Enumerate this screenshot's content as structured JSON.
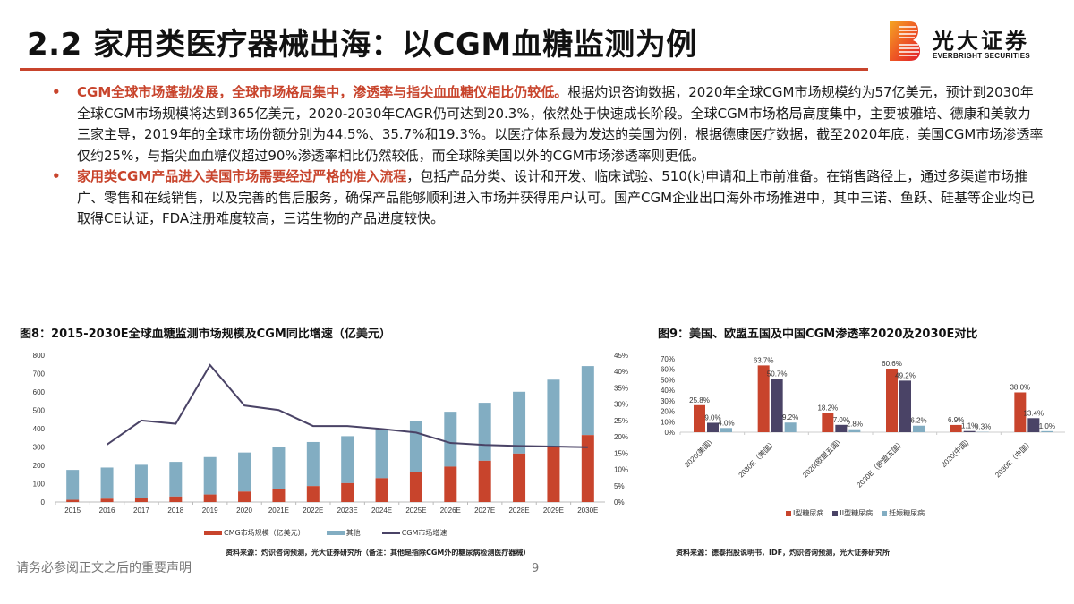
{
  "header": {
    "title": "2.2 家用类医疗器械出海：以CGM血糖监测为例",
    "logo_cn": "光大证券",
    "logo_en": "EVERBRIGHT SECURITIES",
    "accent_color": "#c8442c"
  },
  "bullets": [
    {
      "marker": "•",
      "highlight": "CGM全球市场蓬勃发展，全球市场格局集中，渗透率与指尖血血糖仪相比仍较低。",
      "body": "根据灼识咨询数据，2020年全球CGM市场规模约为57亿美元，预计到2030年全球CGM市场规模将达到365亿美元，2020-2030年CAGR仍可达到20.3%，依然处于快速成长阶段。全球CGM市场格局高度集中，主要被雅培、德康和美敦力三家主导，2019年的全球市场份额分别为44.5%、35.7%和19.3%。以医疗体系最为发达的美国为例，根据德康医疗数据，截至2020年底，美国CGM市场渗透率仅约25%，与指尖血血糖仪超过90%渗透率相比仍然较低，而全球除美国以外的CGM市场渗透率则更低。"
    },
    {
      "marker": "•",
      "highlight": "家用类CGM产品进入美国市场需要经过严格的准入流程",
      "body": "，包括产品分类、设计和开发、临床试验、510(k)申请和上市前准备。在销售路径上，通过多渠道市场推广、零售和在线销售，以及完善的售后服务，确保产品能够顺利进入市场并获得用户认可。国产CGM企业出口海外市场推进中，其中三诺、鱼跃、硅基等企业均已取得CE认证，FDA注册难度较高，三诺生物的产品进度较快。"
    }
  ],
  "figures": {
    "fig8": {
      "title": "图8：2015-2030E全球血糖监测市场规模及CGM同比增速（亿美元）",
      "legend": [
        "CMG市场规模（亿美元）",
        "其他",
        "CGM市场增速"
      ],
      "source": "资料来源：灼识咨询预测，光大证券研究所（备注：其他是指除CGM外的糖尿病检测医疗器械）"
    },
    "fig9": {
      "title": "图9：美国、欧盟五国及中国CGM渗透率2020及2030E对比",
      "legend": [
        "I型糖尿病",
        "II型糖尿病",
        "妊娠糖尿病"
      ],
      "source": "资料来源：德泰招股说明书，IDF，灼识咨询预测，光大证券研究所"
    }
  },
  "chart_data": [
    {
      "type": "bar",
      "stacked": true,
      "title": "图8：2015-2030E全球血糖监测市场规模及CGM同比增速（亿美元）",
      "categories": [
        "2015",
        "2016",
        "2017",
        "2018",
        "2019",
        "2020",
        "2021E",
        "2022E",
        "2023E",
        "2024E",
        "2025E",
        "2026E",
        "2027E",
        "2028E",
        "2029E",
        "2030E"
      ],
      "series": [
        {
          "name": "CMG市场规模（亿美元）",
          "type": "bar",
          "axis": "left",
          "color": "#c8442c",
          "values": [
            12,
            18,
            23,
            30,
            41,
            57,
            72,
            87,
            103,
            130,
            162,
            193,
            225,
            264,
            304,
            365
          ]
        },
        {
          "name": "其他",
          "type": "bar",
          "axis": "left",
          "color": "#82adc2",
          "values": [
            163,
            170,
            180,
            189,
            204,
            213,
            229,
            240,
            256,
            270,
            281,
            299,
            316,
            337,
            363,
            376
          ]
        },
        {
          "name": "CGM市场增速",
          "type": "line",
          "axis": "right",
          "color": "#4a4366",
          "values": [
            null,
            17.6,
            25.0,
            24.0,
            42.0,
            29.6,
            28.2,
            23.3,
            23.3,
            22.4,
            21.3,
            18.1,
            17.5,
            17.2,
            17.0,
            16.8
          ]
        }
      ],
      "left_axis": {
        "ticks": [
          "0",
          "100",
          "200",
          "300",
          "400",
          "500",
          "600",
          "700",
          "800"
        ],
        "ylim": [
          0,
          800
        ]
      },
      "right_axis": {
        "ticks": [
          "0%",
          "5%",
          "10%",
          "15%",
          "20%",
          "25%",
          "30%",
          "35%",
          "40%",
          "45%"
        ],
        "ylim": [
          0,
          45
        ]
      },
      "legend_position": "bottom",
      "grid": false
    },
    {
      "type": "bar",
      "title": "图9：美国、欧盟五国及中国CGM渗透率2020及2030E对比",
      "categories": [
        "2020(美国)",
        "2030E（美国）",
        "2020(欧盟五国)",
        "2030E（欧盟五国）",
        "2020(中国)",
        "2030E（中国）"
      ],
      "series": [
        {
          "name": "I型糖尿病",
          "color": "#c8442c",
          "values": [
            25.8,
            63.7,
            18.2,
            60.6,
            6.9,
            38.0
          ],
          "labels": [
            "25.8%",
            "63.7%",
            "18.2%",
            "60.6%",
            "6.9%",
            "38.0%"
          ]
        },
        {
          "name": "II型糖尿病",
          "color": "#4a4366",
          "values": [
            9.0,
            50.7,
            7.0,
            49.2,
            1.1,
            13.4
          ],
          "labels": [
            "9.0%",
            "50.7%",
            "7.0%",
            "49.2%",
            "1.1%",
            "13.4%"
          ]
        },
        {
          "name": "妊娠糖尿病",
          "color": "#82adc2",
          "values": [
            4.0,
            9.2,
            2.8,
            6.2,
            0.3,
            1.0
          ],
          "labels": [
            "4.0%",
            "9.2%",
            "2.8%",
            "6.2%",
            "0.3%",
            "1.0%"
          ]
        }
      ],
      "y_axis": {
        "ticks": [
          "0%",
          "10%",
          "20%",
          "30%",
          "40%",
          "50%",
          "60%",
          "70%"
        ],
        "ylim": [
          0,
          70
        ]
      },
      "legend_position": "bottom",
      "grid": false
    }
  ],
  "footer": {
    "disclaimer": "请务必参阅正文之后的重要声明",
    "page_number": "9"
  }
}
